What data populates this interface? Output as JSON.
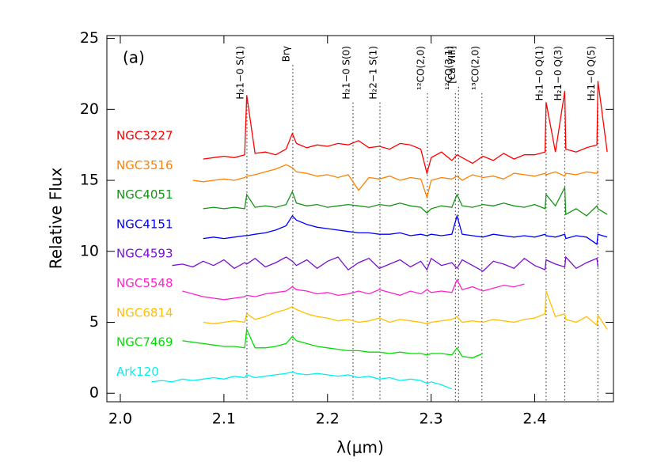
{
  "chart_data": {
    "type": "line",
    "panel": "(a)",
    "x_label": "λ(μm)",
    "y_label": "Relative Flux",
    "xlim": [
      1.987,
      2.476
    ],
    "ylim": [
      -0.6,
      25.2
    ],
    "xticks": [
      {
        "value": 2.0,
        "label": "2.0"
      },
      2.1,
      2.2,
      2.3,
      2.4
    ],
    "yticks": [
      0,
      5,
      10,
      15,
      20,
      25
    ],
    "x": [
      2.03,
      2.04,
      2.05,
      2.06,
      2.07,
      2.08,
      2.09,
      2.1,
      2.11,
      2.12,
      2.122,
      2.13,
      2.14,
      2.15,
      2.16,
      2.166,
      2.17,
      2.18,
      2.19,
      2.2,
      2.21,
      2.22,
      2.23,
      2.24,
      2.25,
      2.26,
      2.27,
      2.28,
      2.29,
      2.296,
      2.3,
      2.31,
      2.32,
      2.325,
      2.33,
      2.34,
      2.35,
      2.36,
      2.37,
      2.38,
      2.39,
      2.4,
      2.41,
      2.411,
      2.42,
      2.429,
      2.43,
      2.44,
      2.45,
      2.46,
      2.461,
      2.47
    ],
    "series": [
      {
        "name": "NGC3227",
        "color": "#ff0000",
        "values": [
          null,
          null,
          null,
          null,
          null,
          16.5,
          16.6,
          16.7,
          16.6,
          16.8,
          21.0,
          16.9,
          17.0,
          16.8,
          17.2,
          18.3,
          17.6,
          17.3,
          17.5,
          17.4,
          17.6,
          17.5,
          17.8,
          17.3,
          17.4,
          17.2,
          17.6,
          17.5,
          17.2,
          15.5,
          16.6,
          17.0,
          16.4,
          16.8,
          16.6,
          16.2,
          16.7,
          16.4,
          16.9,
          16.5,
          16.8,
          16.8,
          17.0,
          20.5,
          17.0,
          21.3,
          17.2,
          17.0,
          17.3,
          17.5,
          22.0,
          17.0
        ]
      },
      {
        "name": "NGC3516",
        "color": "#ff8000",
        "values": [
          null,
          null,
          null,
          null,
          15.0,
          14.9,
          15.0,
          15.1,
          15.0,
          15.2,
          15.3,
          15.4,
          15.6,
          15.8,
          16.1,
          15.9,
          15.6,
          15.5,
          15.3,
          15.4,
          15.2,
          15.4,
          14.3,
          15.2,
          15.1,
          15.3,
          15.0,
          15.2,
          15.1,
          13.8,
          15.0,
          15.2,
          15.1,
          15.3,
          15.0,
          15.4,
          15.2,
          15.3,
          15.1,
          15.5,
          15.4,
          15.3,
          15.5,
          15.4,
          15.6,
          15.3,
          15.5,
          15.4,
          15.6,
          15.5,
          15.7,
          null
        ]
      },
      {
        "name": "NGC4051",
        "color": "#149614",
        "values": [
          null,
          null,
          null,
          null,
          null,
          13.0,
          13.1,
          13.0,
          13.1,
          13.0,
          14.0,
          13.1,
          13.2,
          13.1,
          13.3,
          14.2,
          13.4,
          13.2,
          13.3,
          13.1,
          13.2,
          13.3,
          13.2,
          13.1,
          13.3,
          13.2,
          13.4,
          13.2,
          13.1,
          12.7,
          13.0,
          13.2,
          13.1,
          14.0,
          13.2,
          13.1,
          13.3,
          13.2,
          13.4,
          13.2,
          13.1,
          13.3,
          13.0,
          14.0,
          13.2,
          14.5,
          12.6,
          13.0,
          12.5,
          13.2,
          13.0,
          12.6
        ]
      },
      {
        "name": "NGC4151",
        "color": "#0000ff",
        "values": [
          null,
          null,
          null,
          null,
          null,
          10.9,
          11.0,
          10.9,
          11.0,
          11.1,
          11.1,
          11.2,
          11.3,
          11.5,
          11.8,
          12.5,
          12.2,
          11.9,
          11.7,
          11.6,
          11.5,
          11.4,
          11.3,
          11.3,
          11.2,
          11.2,
          11.3,
          11.1,
          11.2,
          11.1,
          11.2,
          11.1,
          11.2,
          12.5,
          11.2,
          11.1,
          11.0,
          11.2,
          11.1,
          11.0,
          11.1,
          11.0,
          11.2,
          11.1,
          11.0,
          11.2,
          10.9,
          11.1,
          11.0,
          10.5,
          11.2,
          11.0
        ]
      },
      {
        "name": "NGC4593",
        "color": "#7a10d0",
        "values": [
          null,
          null,
          9.0,
          9.1,
          8.9,
          9.3,
          9.0,
          9.4,
          8.8,
          9.2,
          9.1,
          9.5,
          8.9,
          9.2,
          9.6,
          9.3,
          9.0,
          9.4,
          8.8,
          9.3,
          9.6,
          8.7,
          9.2,
          9.5,
          8.8,
          9.1,
          9.4,
          8.9,
          9.3,
          8.7,
          9.5,
          9.0,
          9.2,
          8.8,
          9.4,
          9.0,
          8.6,
          9.3,
          9.1,
          8.8,
          9.5,
          9.0,
          8.7,
          9.4,
          9.1,
          8.9,
          9.6,
          8.8,
          9.2,
          9.5,
          8.9,
          null
        ]
      },
      {
        "name": "NGC5548",
        "color": "#ff22cc",
        "values": [
          null,
          null,
          null,
          7.2,
          7.0,
          6.8,
          6.7,
          6.6,
          6.7,
          6.8,
          6.9,
          6.8,
          7.0,
          7.1,
          7.2,
          7.5,
          7.3,
          7.2,
          7.0,
          7.1,
          6.9,
          7.0,
          7.2,
          7.0,
          7.3,
          7.1,
          6.9,
          7.2,
          7.0,
          7.3,
          7.1,
          7.2,
          7.1,
          8.0,
          7.3,
          7.5,
          7.2,
          7.4,
          7.6,
          7.5,
          7.7,
          null,
          null,
          null,
          null,
          null,
          null,
          null,
          null,
          null,
          null,
          null
        ]
      },
      {
        "name": "NGC6814",
        "color": "#ffc000",
        "values": [
          null,
          null,
          null,
          null,
          null,
          5.0,
          4.9,
          5.0,
          5.1,
          5.0,
          5.6,
          5.2,
          5.4,
          5.7,
          5.9,
          6.1,
          5.9,
          5.6,
          5.4,
          5.3,
          5.1,
          5.2,
          5.0,
          5.1,
          5.3,
          5.0,
          5.2,
          5.1,
          5.0,
          4.9,
          5.0,
          5.1,
          5.2,
          5.4,
          5.0,
          5.1,
          5.0,
          5.2,
          5.1,
          5.0,
          5.2,
          5.3,
          5.6,
          7.2,
          5.4,
          5.6,
          5.2,
          5.0,
          5.4,
          4.8,
          5.5,
          4.5
        ]
      },
      {
        "name": "NGC7469",
        "color": "#00dd00",
        "values": [
          null,
          null,
          null,
          3.7,
          3.6,
          3.5,
          3.4,
          3.3,
          3.3,
          3.2,
          4.5,
          3.2,
          3.2,
          3.3,
          3.5,
          4.0,
          3.7,
          3.5,
          3.3,
          3.2,
          3.1,
          3.0,
          3.0,
          2.9,
          2.9,
          2.8,
          2.9,
          2.8,
          2.8,
          2.7,
          2.8,
          2.8,
          2.7,
          3.2,
          2.6,
          2.5,
          2.8,
          null,
          null,
          null,
          null,
          null,
          null,
          null,
          null,
          null,
          null,
          null,
          null,
          null,
          null,
          null
        ]
      },
      {
        "name": "Ark120",
        "color": "#00f0f0",
        "values": [
          0.8,
          0.9,
          0.8,
          1.0,
          0.9,
          1.0,
          1.1,
          1.0,
          1.2,
          1.1,
          1.3,
          1.1,
          1.2,
          1.3,
          1.4,
          1.5,
          1.4,
          1.3,
          1.4,
          1.3,
          1.2,
          1.3,
          1.1,
          1.2,
          1.0,
          1.1,
          0.9,
          1.0,
          0.9,
          0.7,
          0.8,
          0.6,
          0.3,
          null,
          null,
          null,
          null,
          null,
          null,
          null,
          null,
          null,
          null,
          null,
          null,
          null,
          null,
          null,
          null,
          null,
          null,
          null
        ]
      }
    ],
    "lines": [
      {
        "x": 2.1222,
        "label": "H₂1−0 S(1)"
      },
      {
        "x": 2.1665,
        "label": "Brγ"
      },
      {
        "x": 2.2246,
        "label": "H₂1−0 S(0)"
      },
      {
        "x": 2.2506,
        "label": "H₂2−1 S(1)"
      },
      {
        "x": 2.2964,
        "label": "¹²CO(2,0)"
      },
      {
        "x": 2.3235,
        "label": "¹²CO(3,1)"
      },
      {
        "x": 2.3265,
        "label": "[Ca VIII]"
      },
      {
        "x": 2.349,
        "label": "¹³CO(2,0)"
      },
      {
        "x": 2.411,
        "label": "H₂1−0 Q(1)"
      },
      {
        "x": 2.429,
        "label": "H₂1−0 Q(3)"
      },
      {
        "x": 2.461,
        "label": "H₂1−0 Q(5)"
      }
    ]
  }
}
